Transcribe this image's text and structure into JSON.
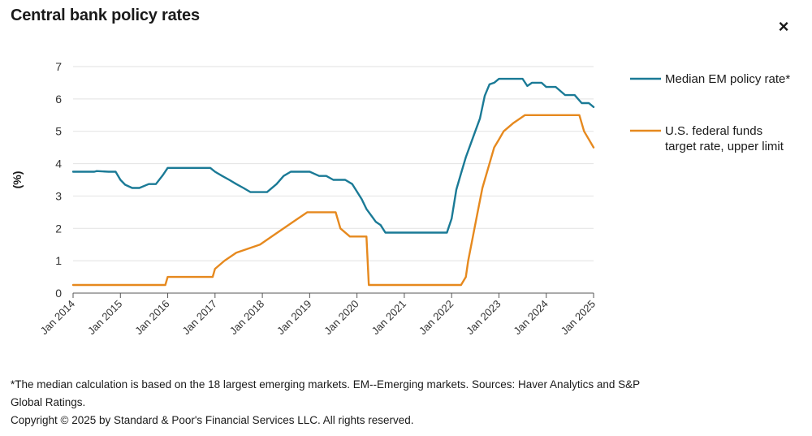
{
  "title": "Central bank policy rates",
  "close_label": "×",
  "footnotes": {
    "note": "*The median calculation is based on the 18 largest emerging markets. EM--Emerging markets. Sources: Haver Analytics and S&P Global Ratings.",
    "copyright": "Copyright © 2025 by Standard & Poor's Financial Services LLC. All rights reserved."
  },
  "colors": {
    "em": "#1a7a96",
    "fed": "#e6891e",
    "grid": "#e2e2e2",
    "axis": "#555555"
  },
  "chart_data": {
    "type": "line",
    "ylabel": "(%)",
    "xlabel": "",
    "ylim": [
      0,
      7
    ],
    "yticks": [
      "0",
      "1",
      "2",
      "3",
      "4",
      "5",
      "6",
      "7"
    ],
    "xlim": [
      2014.0,
      2025.0
    ],
    "xticks": [
      "Jan 2014",
      "Jan 2015",
      "Jan 2016",
      "Jan 2017",
      "Jan 2018",
      "Jan 2019",
      "Jan 2020",
      "Jan 2021",
      "Jan 2022",
      "Jan 2023",
      "Jan 2024",
      "Jan 2025"
    ],
    "grid": true,
    "legend_position": "right",
    "series": [
      {
        "name": "Median EM policy rate*",
        "color": "#1a7a96",
        "x": [
          2014.0,
          2014.25,
          2014.45,
          2014.5,
          2014.75,
          2014.9,
          2015.0,
          2015.1,
          2015.25,
          2015.4,
          2015.6,
          2015.75,
          2015.9,
          2016.0,
          2016.1,
          2016.25,
          2016.5,
          2016.75,
          2016.9,
          2017.0,
          2017.15,
          2017.3,
          2017.45,
          2017.6,
          2017.75,
          2017.9,
          2018.1,
          2018.3,
          2018.45,
          2018.6,
          2018.75,
          2019.0,
          2019.2,
          2019.35,
          2019.5,
          2019.65,
          2019.75,
          2019.9,
          2020.1,
          2020.2,
          2020.3,
          2020.4,
          2020.5,
          2020.6,
          2020.75,
          2021.0,
          2021.5,
          2021.9,
          2022.0,
          2022.1,
          2022.2,
          2022.3,
          2022.4,
          2022.5,
          2022.6,
          2022.7,
          2022.8,
          2022.9,
          2023.0,
          2023.1,
          2023.25,
          2023.5,
          2023.6,
          2023.7,
          2023.9,
          2024.0,
          2024.2,
          2024.4,
          2024.6,
          2024.75,
          2024.9,
          2025.0
        ],
        "values": [
          3.75,
          3.75,
          3.75,
          3.77,
          3.75,
          3.75,
          3.5,
          3.35,
          3.25,
          3.25,
          3.37,
          3.37,
          3.65,
          3.87,
          3.87,
          3.87,
          3.87,
          3.87,
          3.87,
          3.75,
          3.62,
          3.5,
          3.37,
          3.25,
          3.12,
          3.12,
          3.12,
          3.37,
          3.62,
          3.75,
          3.75,
          3.75,
          3.62,
          3.62,
          3.5,
          3.5,
          3.5,
          3.37,
          2.9,
          2.6,
          2.4,
          2.2,
          2.1,
          1.87,
          1.87,
          1.87,
          1.87,
          1.87,
          2.3,
          3.2,
          3.7,
          4.2,
          4.6,
          5.0,
          5.4,
          6.1,
          6.45,
          6.5,
          6.62,
          6.62,
          6.62,
          6.62,
          6.4,
          6.5,
          6.5,
          6.37,
          6.37,
          6.12,
          6.12,
          5.87,
          5.87,
          5.75
        ]
      },
      {
        "name": "U.S. federal funds target rate, upper limit",
        "color": "#e6891e",
        "x": [
          2014.0,
          2015.95,
          2016.0,
          2016.95,
          2017.0,
          2017.2,
          2017.45,
          2017.95,
          2018.2,
          2018.45,
          2018.7,
          2018.95,
          2019.55,
          2019.65,
          2019.85,
          2020.0,
          2020.2,
          2020.25,
          2022.2,
          2022.3,
          2022.35,
          2022.45,
          2022.55,
          2022.65,
          2022.8,
          2022.9,
          2023.0,
          2023.1,
          2023.3,
          2023.55,
          2024.7,
          2024.8,
          2024.9,
          2025.0
        ],
        "values": [
          0.25,
          0.25,
          0.5,
          0.5,
          0.75,
          1.0,
          1.25,
          1.5,
          1.75,
          2.0,
          2.25,
          2.5,
          2.5,
          2.0,
          1.75,
          1.75,
          1.75,
          0.25,
          0.25,
          0.5,
          1.0,
          1.75,
          2.5,
          3.25,
          4.0,
          4.5,
          4.75,
          5.0,
          5.25,
          5.5,
          5.5,
          5.0,
          4.75,
          4.5
        ]
      }
    ]
  }
}
